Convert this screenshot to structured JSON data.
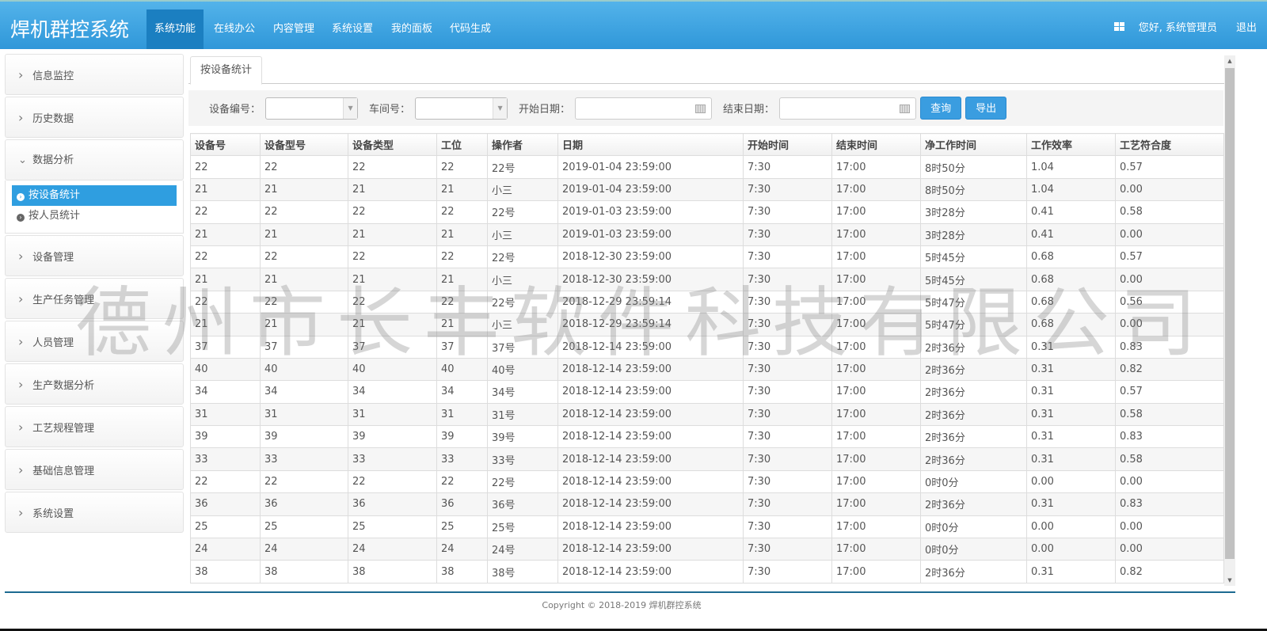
{
  "header": {
    "title": "焊机群控系统",
    "nav": [
      "系统功能",
      "在线办公",
      "内容管理",
      "系统设置",
      "我的面板",
      "代码生成"
    ],
    "active_nav": 0,
    "greeting": "您好, 系统管理员",
    "logout": "退出",
    "icon": "grid-icon"
  },
  "sidebar": {
    "items": [
      {
        "label": "信息监控"
      },
      {
        "label": "历史数据"
      },
      {
        "label": "数据分析",
        "expanded": true,
        "sub": [
          "按设备统计",
          "按人员统计"
        ]
      },
      {
        "label": "设备管理"
      },
      {
        "label": "生产任务管理"
      },
      {
        "label": "人员管理"
      },
      {
        "label": "生产数据分析"
      },
      {
        "label": "工艺规程管理"
      },
      {
        "label": "基础信息管理"
      },
      {
        "label": "系统设置"
      }
    ]
  },
  "tab": "按设备统计",
  "filter": {
    "device_label": "设备编号：",
    "workshop_label": "车间号：",
    "start_label": "开始日期：",
    "end_label": "结束日期：",
    "device_value": "",
    "workshop_value": "",
    "start_value": "",
    "end_value": "",
    "query": "查询",
    "export": "导出"
  },
  "table": {
    "headers": [
      "设备号",
      "设备型号",
      "设备类型",
      "工位",
      "操作者",
      "日期",
      "开始时间",
      "结束时间",
      "净工作时间",
      "工作效率",
      "工艺符合度"
    ],
    "rows": [
      [
        "22",
        "22",
        "22",
        "22",
        "22号",
        "2019-01-04 23:59:00",
        "7:30",
        "17:00",
        "8时50分",
        "1.04",
        "0.57"
      ],
      [
        "21",
        "21",
        "21",
        "21",
        "小三",
        "2019-01-04 23:59:00",
        "7:30",
        "17:00",
        "8时50分",
        "1.04",
        "0.00"
      ],
      [
        "22",
        "22",
        "22",
        "22",
        "22号",
        "2019-01-03 23:59:00",
        "7:30",
        "17:00",
        "3时28分",
        "0.41",
        "0.58"
      ],
      [
        "21",
        "21",
        "21",
        "21",
        "小三",
        "2019-01-03 23:59:00",
        "7:30",
        "17:00",
        "3时28分",
        "0.41",
        "0.00"
      ],
      [
        "22",
        "22",
        "22",
        "22",
        "22号",
        "2018-12-30 23:59:00",
        "7:30",
        "17:00",
        "5时45分",
        "0.68",
        "0.57"
      ],
      [
        "21",
        "21",
        "21",
        "21",
        "小三",
        "2018-12-30 23:59:00",
        "7:30",
        "17:00",
        "5时45分",
        "0.68",
        "0.00"
      ],
      [
        "22",
        "22",
        "22",
        "22",
        "22号",
        "2018-12-29 23:59:14",
        "7:30",
        "17:00",
        "5时47分",
        "0.68",
        "0.56"
      ],
      [
        "21",
        "21",
        "21",
        "21",
        "小三",
        "2018-12-29 23:59:14",
        "7:30",
        "17:00",
        "5时47分",
        "0.68",
        "0.00"
      ],
      [
        "37",
        "37",
        "37",
        "37",
        "37号",
        "2018-12-14 23:59:00",
        "7:30",
        "17:00",
        "2时36分",
        "0.31",
        "0.83"
      ],
      [
        "40",
        "40",
        "40",
        "40",
        "40号",
        "2018-12-14 23:59:00",
        "7:30",
        "17:00",
        "2时36分",
        "0.31",
        "0.82"
      ],
      [
        "34",
        "34",
        "34",
        "34",
        "34号",
        "2018-12-14 23:59:00",
        "7:30",
        "17:00",
        "2时36分",
        "0.31",
        "0.57"
      ],
      [
        "31",
        "31",
        "31",
        "31",
        "31号",
        "2018-12-14 23:59:00",
        "7:30",
        "17:00",
        "2时36分",
        "0.31",
        "0.58"
      ],
      [
        "39",
        "39",
        "39",
        "39",
        "39号",
        "2018-12-14 23:59:00",
        "7:30",
        "17:00",
        "2时36分",
        "0.31",
        "0.83"
      ],
      [
        "33",
        "33",
        "33",
        "33",
        "33号",
        "2018-12-14 23:59:00",
        "7:30",
        "17:00",
        "2时36分",
        "0.31",
        "0.58"
      ],
      [
        "22",
        "22",
        "22",
        "22",
        "22号",
        "2018-12-14 23:59:00",
        "7:30",
        "17:00",
        "0时0分",
        "0.00",
        "0.00"
      ],
      [
        "36",
        "36",
        "36",
        "36",
        "36号",
        "2018-12-14 23:59:00",
        "7:30",
        "17:00",
        "2时36分",
        "0.31",
        "0.83"
      ],
      [
        "25",
        "25",
        "25",
        "25",
        "25号",
        "2018-12-14 23:59:00",
        "7:30",
        "17:00",
        "0时0分",
        "0.00",
        "0.00"
      ],
      [
        "24",
        "24",
        "24",
        "24",
        "24号",
        "2018-12-14 23:59:00",
        "7:30",
        "17:00",
        "0时0分",
        "0.00",
        "0.00"
      ],
      [
        "38",
        "38",
        "38",
        "38",
        "38号",
        "2018-12-14 23:59:00",
        "7:30",
        "17:00",
        "2时36分",
        "0.31",
        "0.82"
      ]
    ]
  },
  "watermark": "德州市长丰软件科技有限公司",
  "footer": "Copyright © 2018-2019 焊机群控系统",
  "colors": {
    "header": "#3a9fe0",
    "active_nav": "#1b7fc1",
    "button": "#3a9de0"
  }
}
